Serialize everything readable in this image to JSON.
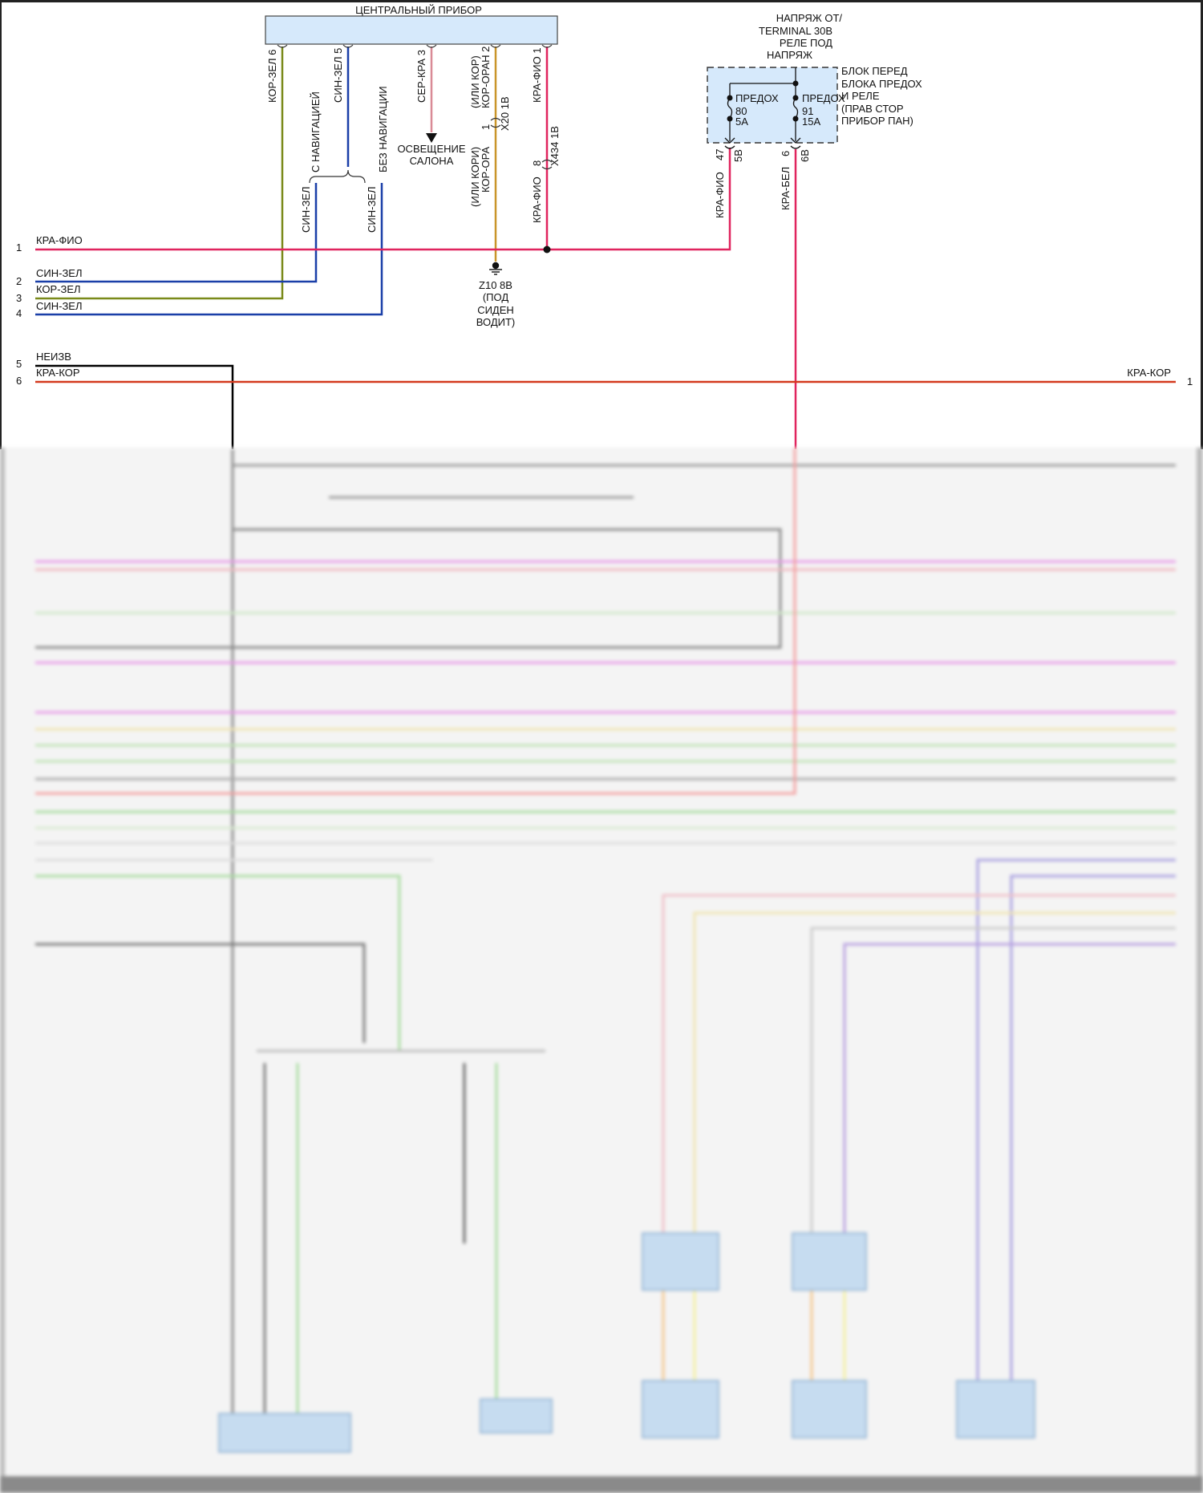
{
  "module": {
    "title": "ЦЕНТРАЛЬНЫЙ ПРИБОР",
    "pins": [
      {
        "wire": "КОР-ЗЕЛ",
        "pin": "6"
      },
      {
        "wire": "СИН-ЗЕЛ",
        "pin": "5"
      },
      {
        "wire": "СЕР-КРА",
        "pin": "3"
      },
      {
        "wire": "КОР-ОРАН",
        "pin": "2",
        "alt": "(ИЛИ КОР)"
      },
      {
        "wire": "КРА-ФИО",
        "pin": "1"
      }
    ]
  },
  "variants": {
    "with_nav": "С НАВИГАЦИЕЙ",
    "without_nav": "БЕЗ НАВИГАЦИИ",
    "wire_with_nav": "СИН-ЗЕЛ",
    "wire_without_nav": "СИН-ЗЕЛ"
  },
  "interior_light": {
    "line1": "ОСВЕЩЕНИЕ",
    "line2": "САЛОНА"
  },
  "connector_x20": {
    "name": "X20 1B",
    "pin_in": "1",
    "wire_lower": "КОР-ОРА",
    "alt_lower": "(ИЛИ КОРИ)"
  },
  "connector_x434": {
    "name": "X434 1B",
    "pin_in": "8",
    "wire_lower": "КРА-ФИО"
  },
  "ground": {
    "line1": "Z10 8B",
    "line2": "(ПОД",
    "line3": "СИДЕН",
    "line4": "ВОДИТ)"
  },
  "power": {
    "line1": "НАПРЯЖ ОТ/",
    "line2": "TERMINAL 30B",
    "line3": "РЕЛЕ ПОД",
    "line4": "НАПРЯЖ"
  },
  "fuse_block": {
    "label": [
      "БЛОК ПЕРЕД",
      "БЛОКА ПРЕДОХ",
      "И РЕЛЕ",
      "(ПРАВ СТОР",
      "ПРИБОР ПАН)"
    ],
    "fuses": [
      {
        "name": "ПРЕДОХ",
        "number": "80",
        "rating": "5A",
        "pin": "47",
        "conn": "5B",
        "wire": "КРА-ФИО"
      },
      {
        "name": "ПРЕДОХ",
        "number": "91",
        "rating": "15A",
        "pin": "6",
        "conn": "6B",
        "wire": "КРА-БЕЛ"
      }
    ]
  },
  "left_wires": [
    {
      "num": "1",
      "color_name": "КРА-ФИО",
      "color": "#e0245e"
    },
    {
      "num": "2",
      "color_name": "СИН-ЗЕЛ",
      "color": "#1a3fa8"
    },
    {
      "num": "3",
      "color_name": "КОР-ЗЕЛ",
      "color": "#7a8a1a"
    },
    {
      "num": "4",
      "color_name": "СИН-ЗЕЛ",
      "color": "#1a3fa8"
    },
    {
      "num": "5",
      "color_name": "НЕИЗВ",
      "color": "#000000"
    },
    {
      "num": "6",
      "color_name": "КРА-КОР",
      "color": "#d43a1e"
    }
  ],
  "right_wire": {
    "num": "1",
    "color_name": "КРА-КОР"
  },
  "colors": {
    "module_fill": "#d6e9fb",
    "fuse_fill": "#d6e9fb",
    "red_white": "#e0245e",
    "orange": "#c9952a",
    "grey_red": "#d98a96"
  }
}
